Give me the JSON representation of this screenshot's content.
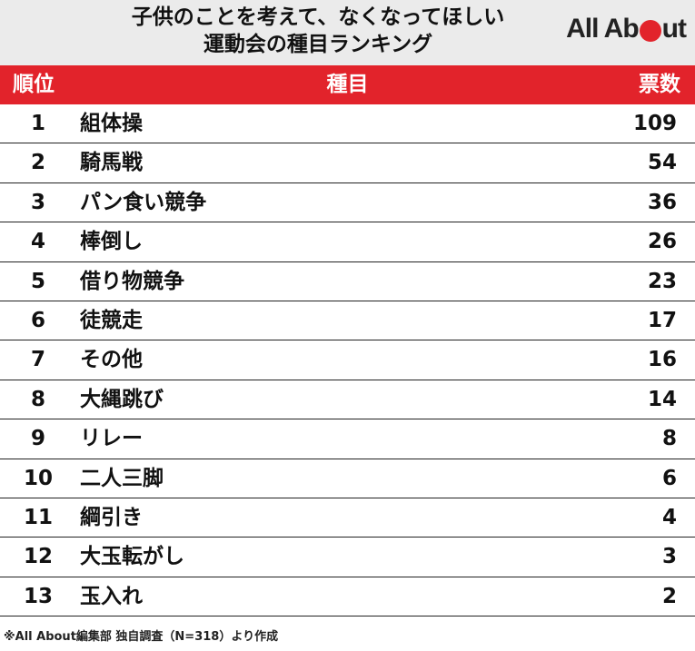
{
  "header": {
    "title_line1": "子供のことを考えて、なくなってほしい",
    "title_line2": "運動会の種目ランキング",
    "logo_part1": "All Ab",
    "logo_part2": "ut"
  },
  "table": {
    "columns": [
      "順位",
      "種目",
      "票数"
    ],
    "rows": [
      {
        "rank": "1",
        "item": "組体操",
        "votes": "109"
      },
      {
        "rank": "2",
        "item": "騎馬戦",
        "votes": "54"
      },
      {
        "rank": "3",
        "item": "パン食い競争",
        "votes": "36"
      },
      {
        "rank": "4",
        "item": "棒倒し",
        "votes": "26"
      },
      {
        "rank": "5",
        "item": "借り物競争",
        "votes": "23"
      },
      {
        "rank": "6",
        "item": "徒競走",
        "votes": "17"
      },
      {
        "rank": "7",
        "item": "その他",
        "votes": "16"
      },
      {
        "rank": "8",
        "item": "大縄跳び",
        "votes": "14"
      },
      {
        "rank": "9",
        "item": "リレー",
        "votes": "8"
      },
      {
        "rank": "10",
        "item": "二人三脚",
        "votes": "6"
      },
      {
        "rank": "11",
        "item": "綱引き",
        "votes": "4"
      },
      {
        "rank": "12",
        "item": "大玉転がし",
        "votes": "3"
      },
      {
        "rank": "13",
        "item": "玉入れ",
        "votes": "2"
      }
    ]
  },
  "footnote": "※All About編集部 独自調査（N=318）より作成",
  "colors": {
    "accent": "#e2232b",
    "header_bg": "#ebebeb"
  }
}
